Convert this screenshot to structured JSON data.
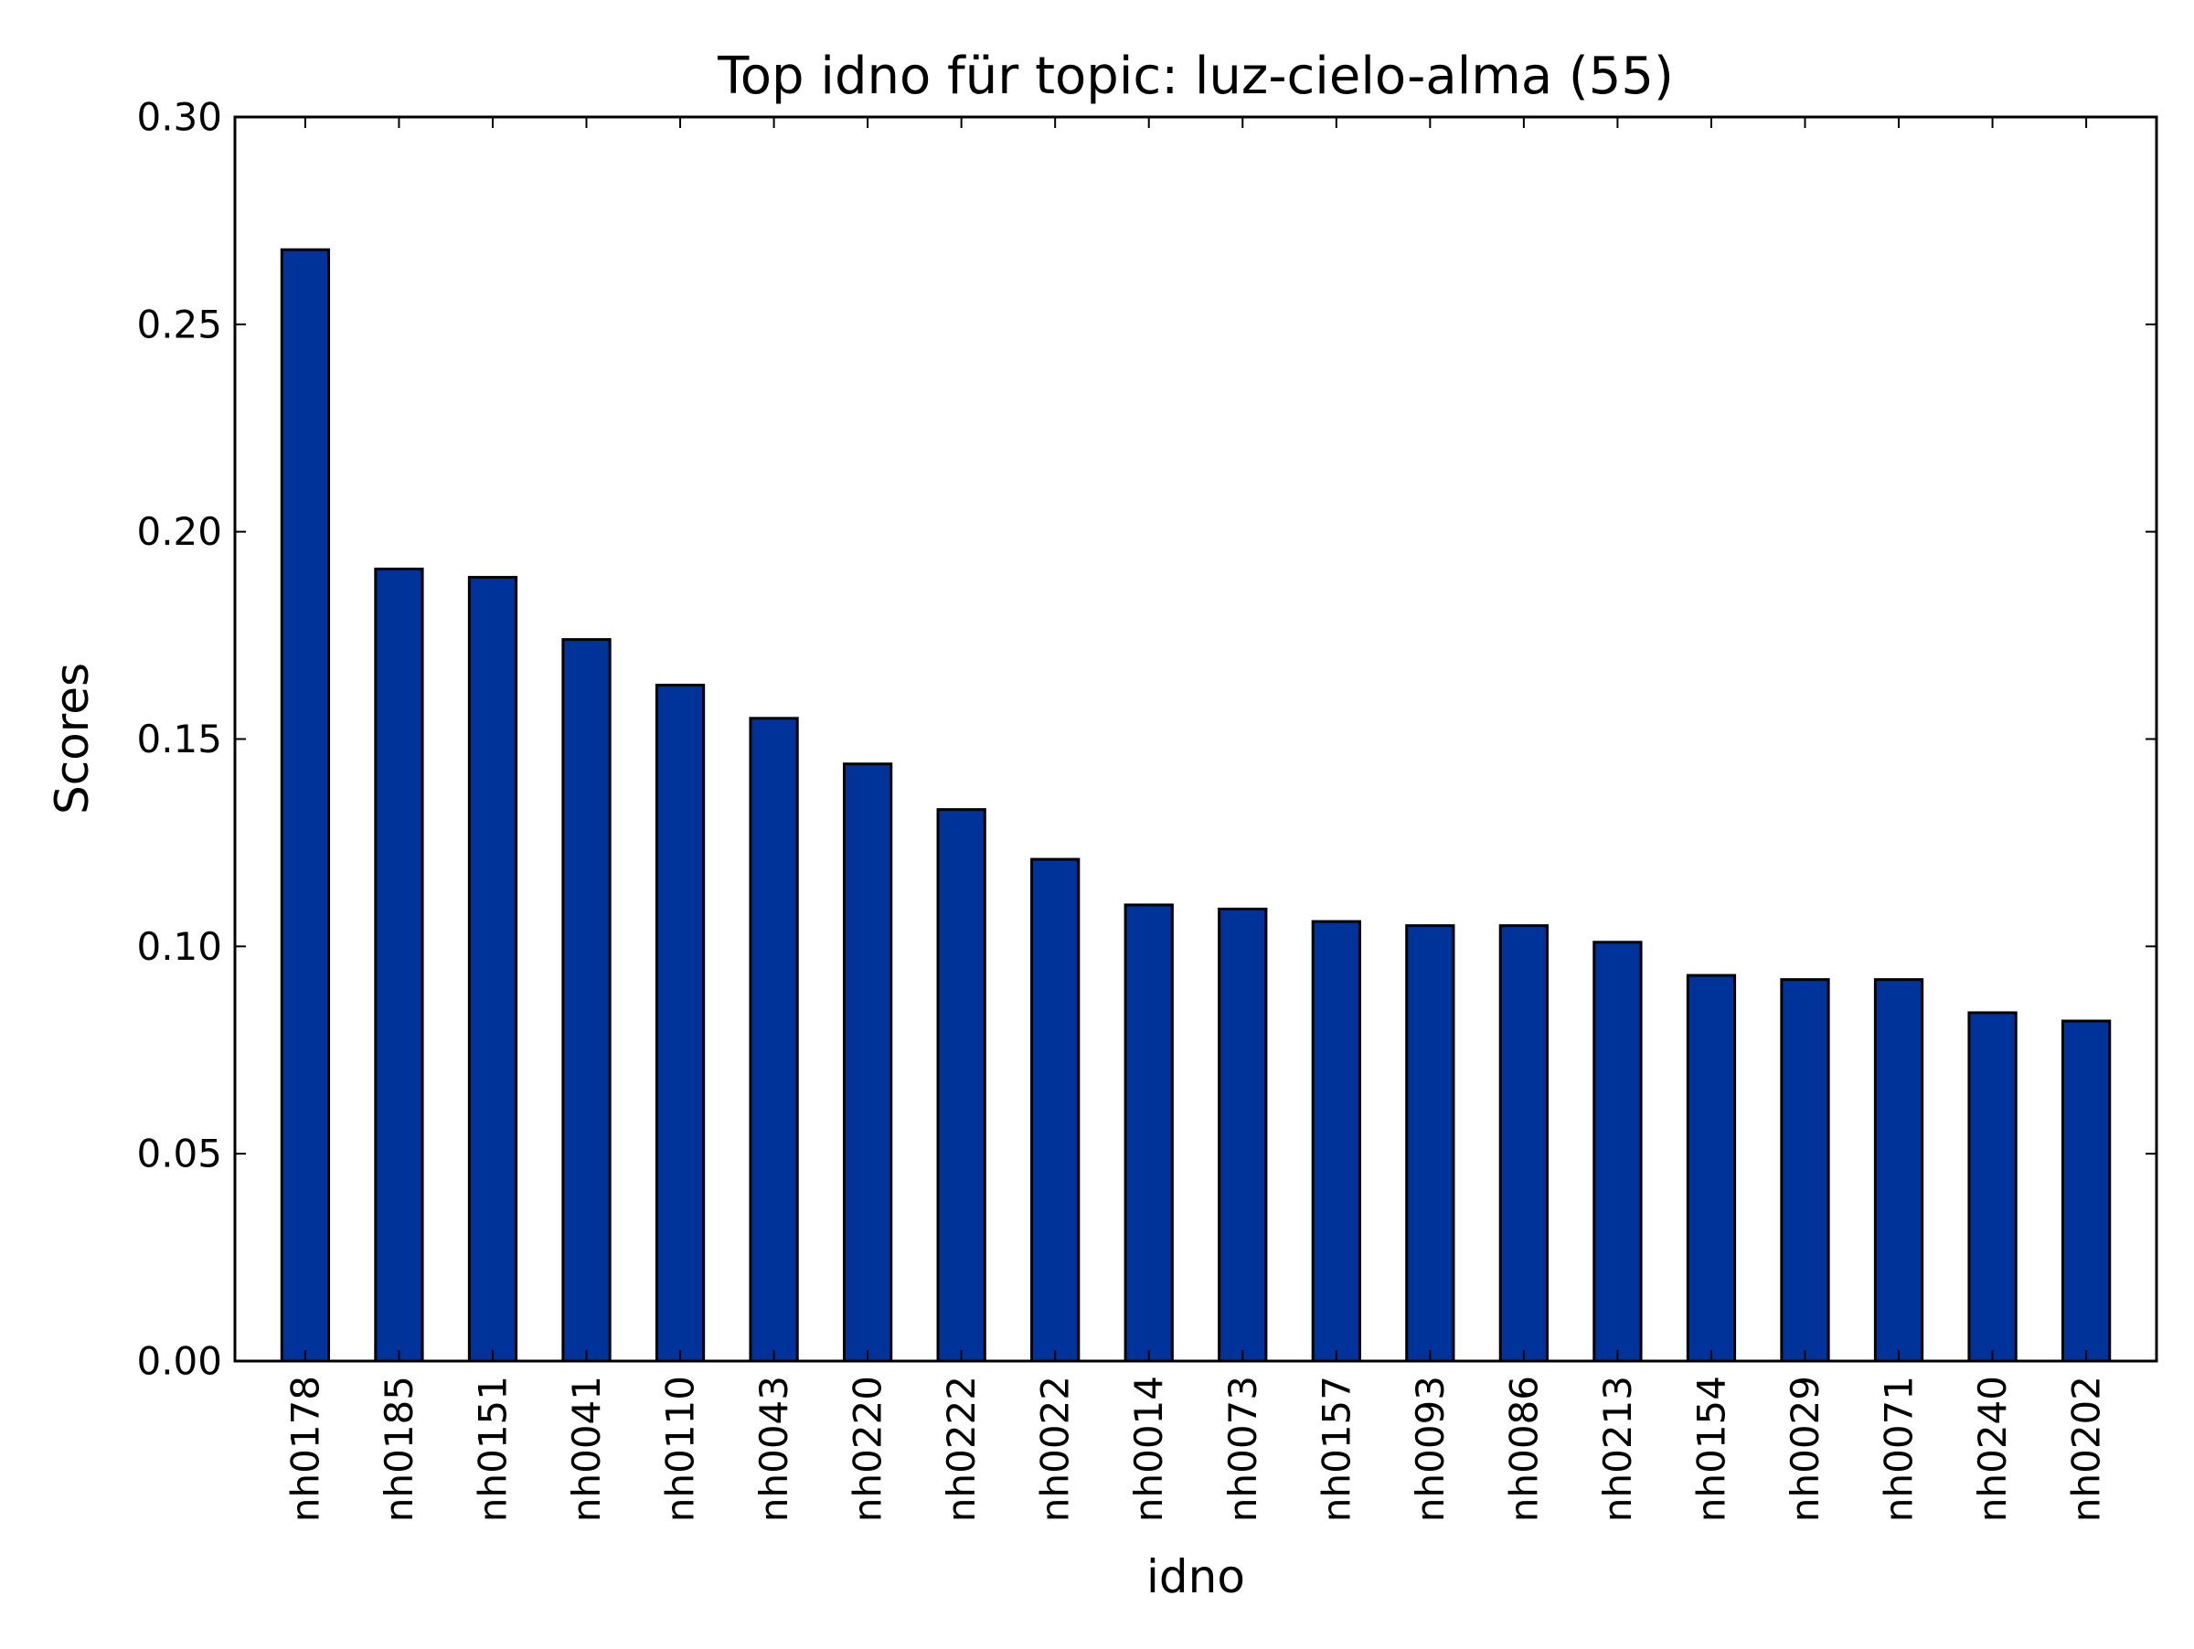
{
  "chart_data": {
    "type": "bar",
    "title": "Top idno für topic: luz-cielo-alma (55)",
    "xlabel": "idno",
    "ylabel": "Scores",
    "ylim": [
      0,
      0.3
    ],
    "yticks": [
      "0.00",
      "0.05",
      "0.10",
      "0.15",
      "0.20",
      "0.25",
      "0.30"
    ],
    "grid": false,
    "legend": "none",
    "bar_color": "#003399",
    "edge_color": "#000000",
    "categories": [
      "nh0178",
      "nh0185",
      "nh0151",
      "nh0041",
      "nh0110",
      "nh0043",
      "nh0220",
      "nh0222",
      "nh0022",
      "nh0014",
      "nh0073",
      "nh0157",
      "nh0093",
      "nh0086",
      "nh0213",
      "nh0154",
      "nh0029",
      "nh0071",
      "nh0240",
      "nh0202"
    ],
    "values": [
      0.268,
      0.191,
      0.189,
      0.174,
      0.163,
      0.155,
      0.144,
      0.133,
      0.121,
      0.11,
      0.109,
      0.106,
      0.105,
      0.105,
      0.101,
      0.093,
      0.092,
      0.092,
      0.084,
      0.082
    ]
  }
}
